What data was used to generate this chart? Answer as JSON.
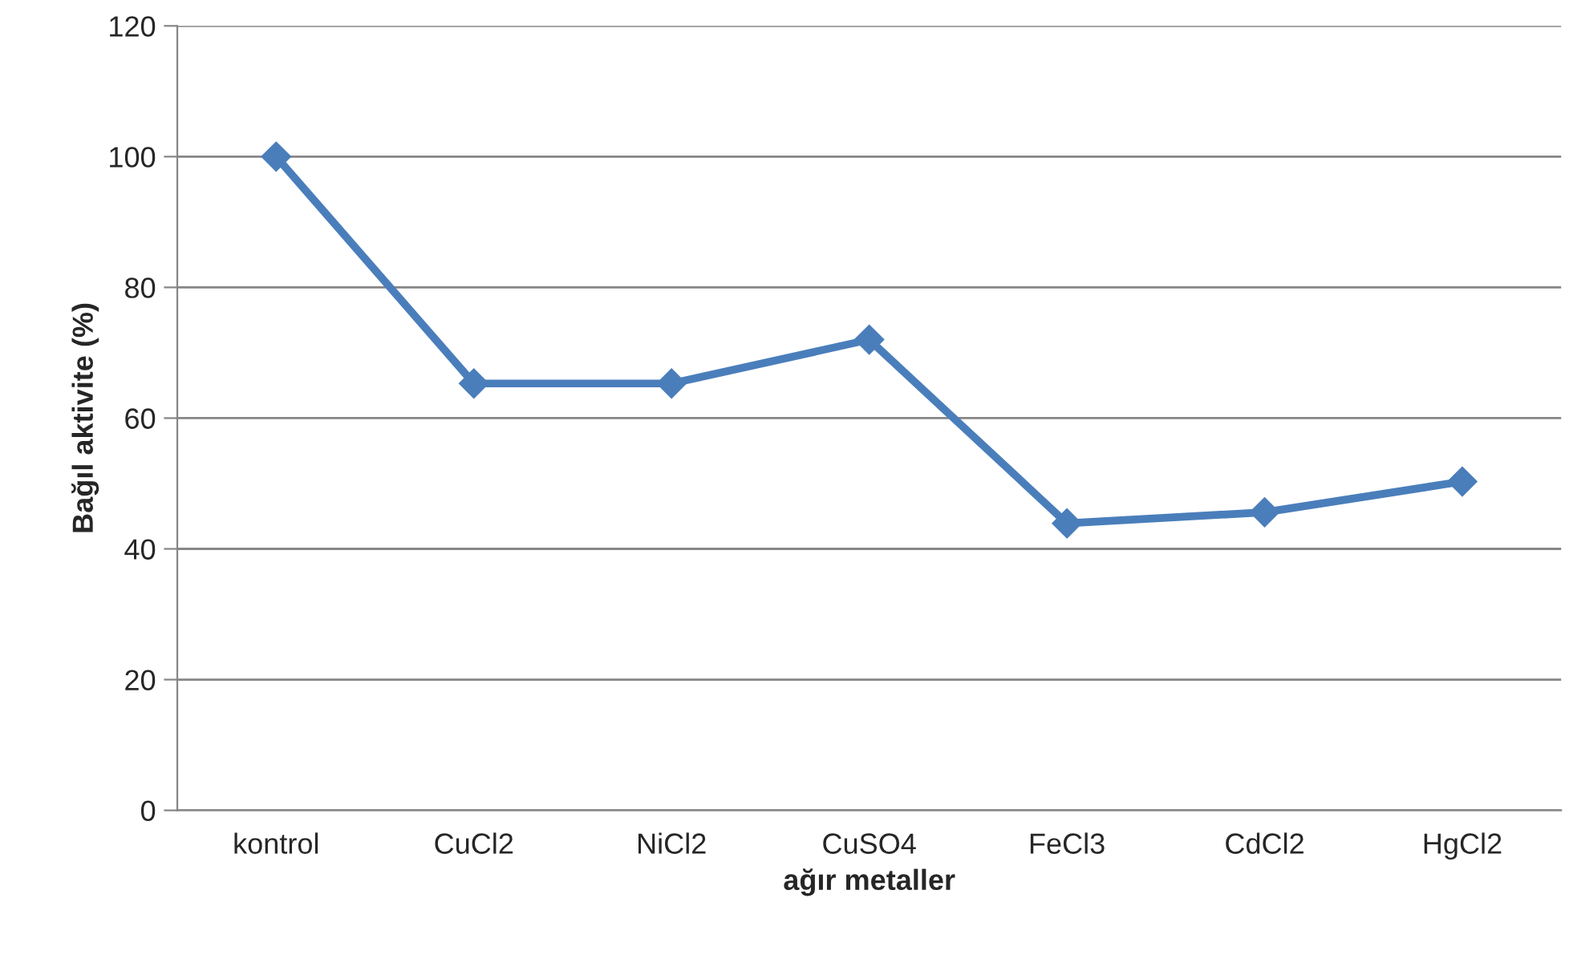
{
  "chart_data": {
    "type": "line",
    "xlabel": "ağır metaller",
    "ylabel": "Bağıl aktivite (%)",
    "categories": [
      "kontrol",
      "CuCl2",
      "NiCl2",
      "CuSO4",
      "FeCl3",
      "CdCl2",
      "HgCl2"
    ],
    "series": [
      {
        "color": "#4a7ebb",
        "values": [
          100,
          65.3,
          65.3,
          72,
          43.9,
          45.6,
          50.3
        ]
      }
    ],
    "ylim": [
      0,
      120
    ],
    "yticks": [
      0,
      20,
      40,
      60,
      80,
      100,
      120
    ],
    "grid": "y",
    "marker": "diamond",
    "line_style": "solid",
    "legend": false
  }
}
